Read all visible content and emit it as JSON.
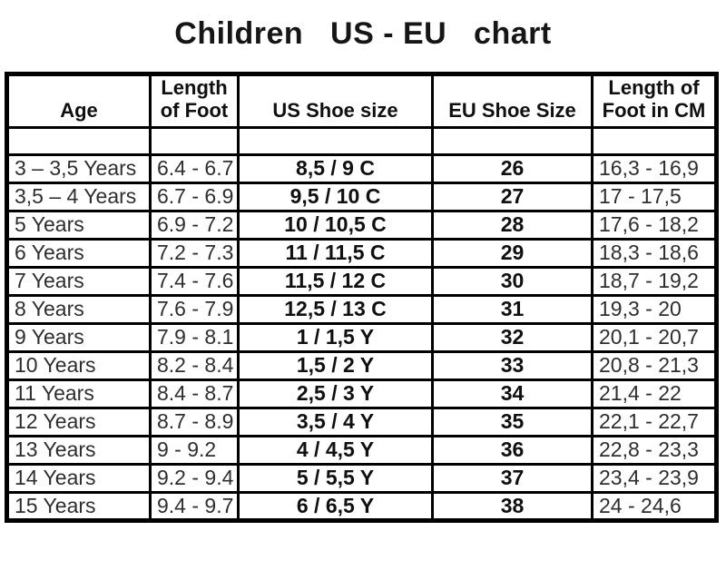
{
  "title": "Children   US - EU   chart",
  "colors": {
    "background": "#ffffff",
    "border": "#000000",
    "text_regular": "#2e2e2e",
    "text_bold": "#101010"
  },
  "table": {
    "display_headers": [
      "Age",
      "Length\nof Foot",
      "US Shoe size",
      "EU Shoe Size",
      "Length of\nFoot in CM"
    ]
  },
  "chart_data": {
    "type": "table",
    "title": "Children US - EU chart",
    "columns": [
      "Age",
      "Length of Foot",
      "US Shoe size",
      "EU Shoe Size",
      "Length of Foot in CM"
    ],
    "rows": [
      [
        "3 – 3,5 Years",
        "6.4 - 6.7",
        "8,5 / 9 C",
        "26",
        "16,3 - 16,9"
      ],
      [
        "3,5 – 4 Years",
        "6.7 - 6.9",
        "9,5 / 10 C",
        "27",
        "17 - 17,5"
      ],
      [
        "5 Years",
        "6.9 - 7.2",
        "10 / 10,5 C",
        "28",
        "17,6 - 18,2"
      ],
      [
        "6 Years",
        "7.2 - 7.3",
        "11 / 11,5 C",
        "29",
        "18,3 - 18,6"
      ],
      [
        "7 Years",
        "7.4 - 7.6",
        "11,5 / 12 C",
        "30",
        "18,7 - 19,2"
      ],
      [
        "8 Years",
        "7.6 - 7.9",
        "12,5 / 13 C",
        "31",
        "19,3 - 20"
      ],
      [
        "9 Years",
        "7.9 - 8.1",
        "1 / 1,5 Y",
        "32",
        "20,1 - 20,7"
      ],
      [
        "10 Years",
        "8.2 - 8.4",
        "1,5 / 2 Y",
        "33",
        "20,8 - 21,3"
      ],
      [
        "11 Years",
        "8.4 - 8.7",
        "2,5 / 3 Y",
        "34",
        "21,4 - 22"
      ],
      [
        "12 Years",
        "8.7 - 8.9",
        "3,5 / 4 Y",
        "35",
        "22,1 - 22,7"
      ],
      [
        "13 Years",
        "9 - 9.2",
        "4 / 4,5 Y",
        "36",
        "22,8 - 23,3"
      ],
      [
        "14 Years",
        "9.2 - 9.4",
        "5 / 5,5 Y",
        "37",
        "23,4 - 23,9"
      ],
      [
        "15 Years",
        "9.4 - 9.7",
        "6 / 6,5 Y",
        "38",
        "24 - 24,6"
      ]
    ]
  }
}
